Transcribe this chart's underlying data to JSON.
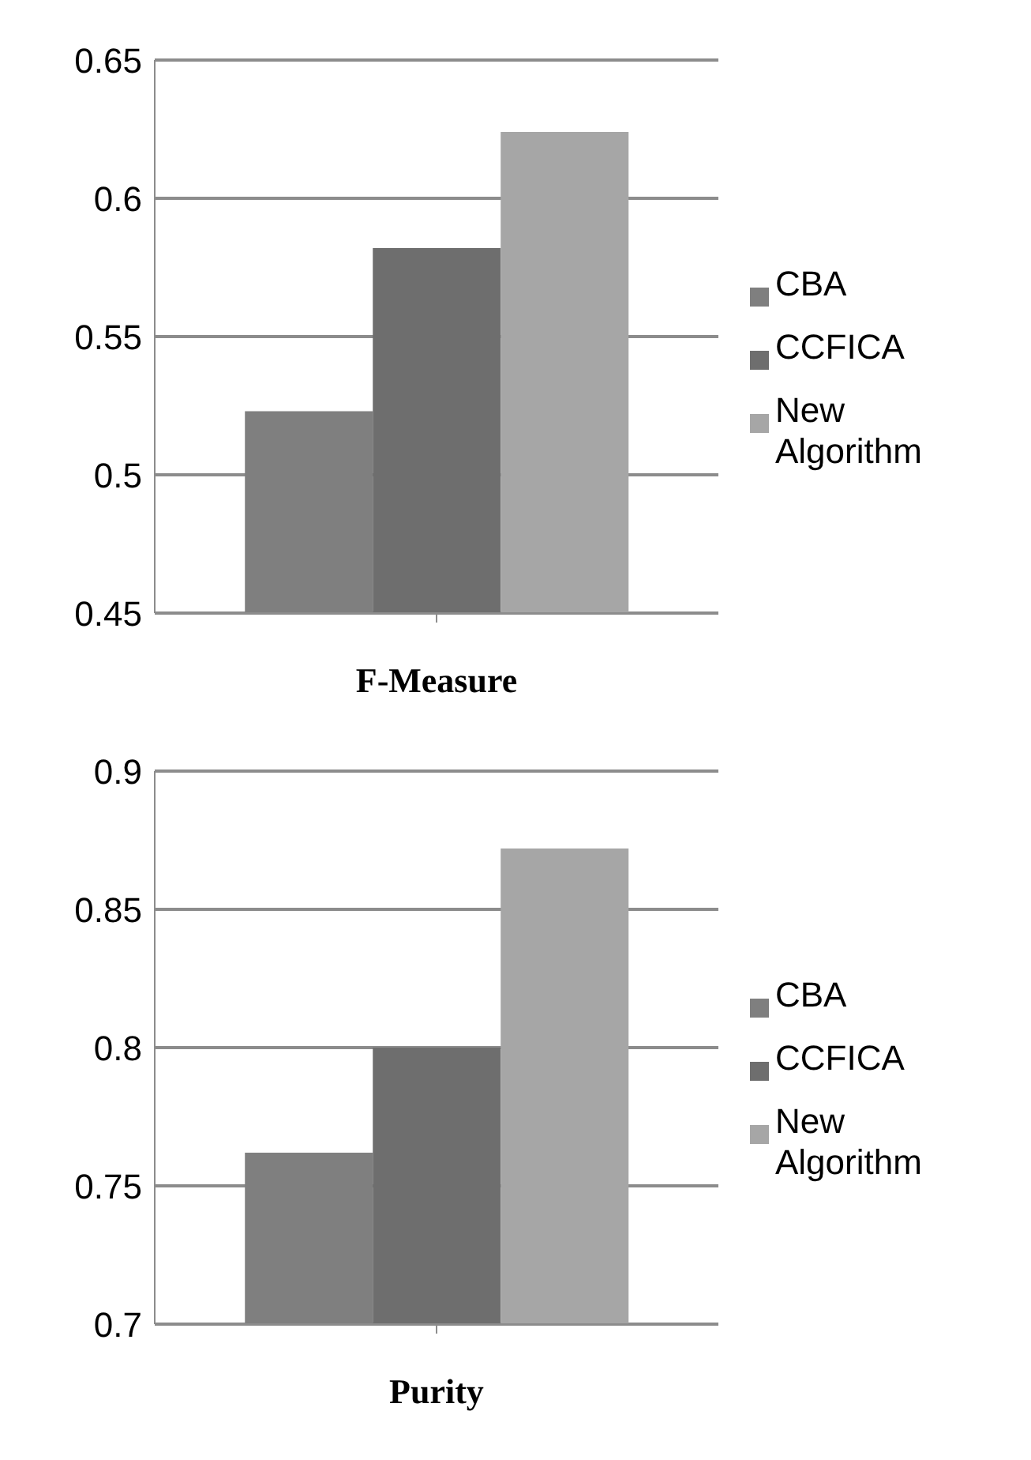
{
  "chart_data": [
    {
      "type": "bar",
      "xlabel": "F-Measure",
      "categories": [
        null
      ],
      "series": [
        {
          "name": "CBA",
          "color": "#7f7f7f",
          "values": [
            0.523
          ]
        },
        {
          "name": "CCFICA",
          "color": "#6e6e6e",
          "values": [
            0.582
          ]
        },
        {
          "name": "New Algorithm",
          "color": "#a6a6a6",
          "values": [
            0.624
          ]
        }
      ],
      "ylim": [
        0.45,
        0.65
      ],
      "yticks": [
        0.45,
        0.5,
        0.55,
        0.6,
        0.65
      ],
      "grid": "y",
      "legend": "right"
    },
    {
      "type": "bar",
      "xlabel": "Purity",
      "categories": [
        null
      ],
      "series": [
        {
          "name": "CBA",
          "color": "#7f7f7f",
          "values": [
            0.762
          ]
        },
        {
          "name": "CCFICA",
          "color": "#6e6e6e",
          "values": [
            0.8
          ]
        },
        {
          "name": "New Algorithm",
          "color": "#a6a6a6",
          "values": [
            0.872
          ]
        }
      ],
      "ylim": [
        0.7,
        0.9
      ],
      "yticks": [
        0.7,
        0.75,
        0.8,
        0.85,
        0.9
      ],
      "grid": "y",
      "legend": "right"
    }
  ]
}
